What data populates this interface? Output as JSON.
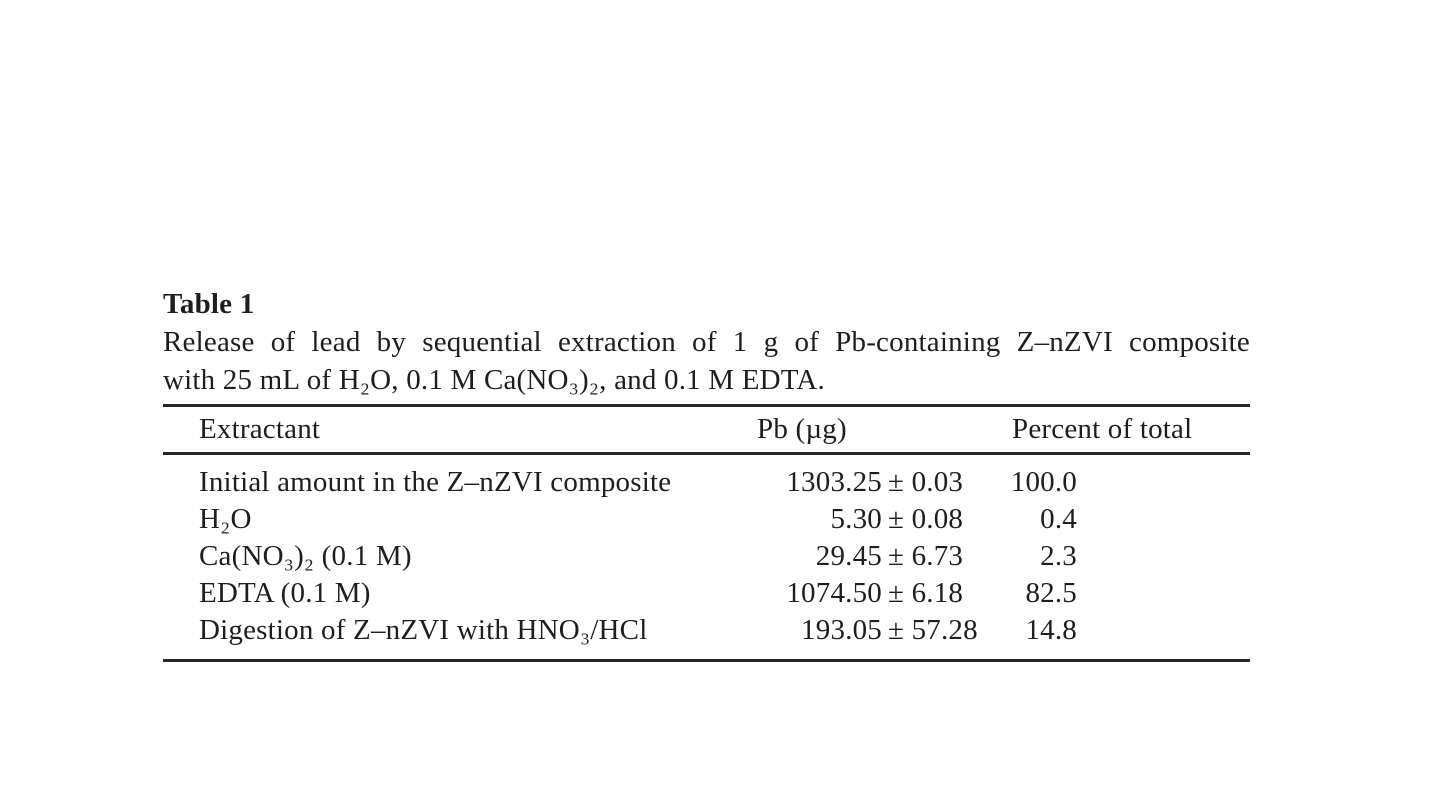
{
  "page": {
    "background": "#ffffff",
    "text_color": "#201d1e",
    "rule_color": "#272525"
  },
  "table_label": "Table 1",
  "caption": {
    "line1": "Release of lead by sequential extraction of 1 g of Pb-containing Z–nZVI composite",
    "line2": "with 25 mL of H₂O, 0.1 M Ca(NO₃)₂, and 0.1 M EDTA."
  },
  "chart_data": {
    "type": "table",
    "title": "Release of lead by sequential extraction of 1 g of Pb-containing Z–nZVI composite with 25 mL of H₂O, 0.1 M Ca(NO₃)₂, and 0.1 M EDTA.",
    "columns": [
      "Extractant",
      "Pb (µg)",
      "Percent of total"
    ],
    "rows": [
      [
        "Initial amount in the Z–nZVI composite",
        "1303.25 ± 0.03",
        "100.0"
      ],
      [
        "H₂O",
        "5.30 ± 0.08",
        "0.4"
      ],
      [
        "Ca(NO₃)₂ (0.1 M)",
        "29.45 ± 6.73",
        "2.3"
      ],
      [
        "EDTA (0.1 M)",
        "1074.50 ± 6.18",
        "82.5"
      ],
      [
        "Digestion of Z–nZVI with HNO₃/HCl",
        "193.05 ± 57.28",
        "14.8"
      ]
    ]
  },
  "table": {
    "headers": {
      "extractant": "Extractant",
      "pb": "Pb (µg)",
      "percent": "Percent of total"
    },
    "rows": [
      {
        "extractant": "Initial amount in the Z–nZVI composite",
        "pb_value": "1303.25",
        "pb_error": "± 0.03",
        "percent": "100.0"
      },
      {
        "extractant": "H₂O",
        "pb_value": "5.30",
        "pb_error": "± 0.08",
        "percent": "0.4"
      },
      {
        "extractant": "Ca(NO₃)₂ (0.1 M)",
        "pb_value": "29.45",
        "pb_error": "± 6.73",
        "percent": "2.3"
      },
      {
        "extractant": "EDTA (0.1 M)",
        "pb_value": "1074.50",
        "pb_error": "± 6.18",
        "percent": "82.5"
      },
      {
        "extractant": "Digestion of Z–nZVI with HNO₃/HCl",
        "pb_value": "193.05",
        "pb_error": "± 57.28",
        "percent": "14.8"
      }
    ]
  }
}
